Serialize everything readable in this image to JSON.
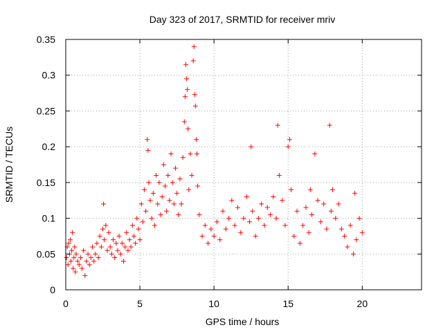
{
  "chart_data": {
    "type": "scatter",
    "title": "Day 323 of 2017, SRMTID for receiver mriv",
    "xlabel": "GPS time / hours",
    "ylabel": "SRMTID / TECUs",
    "xlim": [
      0,
      24
    ],
    "ylim": [
      0,
      0.35
    ],
    "x_ticks": [
      0,
      5,
      10,
      15,
      20
    ],
    "x_tick_labels": [
      "0",
      "5",
      "10",
      "15",
      "20"
    ],
    "y_ticks": [
      0,
      0.05,
      0.1,
      0.15,
      0.2,
      0.25,
      0.3,
      0.35
    ],
    "y_tick_labels": [
      "0",
      "0.05",
      "0.1",
      "0.15",
      "0.2",
      "0.25",
      "0.3",
      "0.35"
    ],
    "grid": true,
    "legend": "none",
    "marker": "plus",
    "marker_color": "#ff0000",
    "series": [
      {
        "points": [
          [
            0.05,
            0.045
          ],
          [
            0.1,
            0.06
          ],
          [
            0.15,
            0.035
          ],
          [
            0.2,
            0.065
          ],
          [
            0.25,
            0.05
          ],
          [
            0.3,
            0.07
          ],
          [
            0.35,
            0.04
          ],
          [
            0.4,
            0.055
          ],
          [
            0.45,
            0.08
          ],
          [
            0.5,
            0.03
          ],
          [
            0.55,
            0.045
          ],
          [
            0.6,
            0.06
          ],
          [
            0.65,
            0.025
          ],
          [
            0.7,
            0.05
          ],
          [
            0.8,
            0.04
          ],
          [
            0.9,
            0.035
          ],
          [
            1.0,
            0.045
          ],
          [
            1.1,
            0.03
          ],
          [
            1.2,
            0.055
          ],
          [
            1.3,
            0.02
          ],
          [
            1.4,
            0.04
          ],
          [
            1.5,
            0.05
          ],
          [
            1.6,
            0.035
          ],
          [
            1.7,
            0.045
          ],
          [
            1.8,
            0.06
          ],
          [
            1.9,
            0.04
          ],
          [
            2.0,
            0.05
          ],
          [
            2.1,
            0.065
          ],
          [
            2.2,
            0.045
          ],
          [
            2.3,
            0.075
          ],
          [
            2.4,
            0.06
          ],
          [
            2.5,
            0.085
          ],
          [
            2.55,
            0.12
          ],
          [
            2.6,
            0.07
          ],
          [
            2.7,
            0.09
          ],
          [
            2.8,
            0.055
          ],
          [
            2.9,
            0.08
          ],
          [
            3.0,
            0.06
          ],
          [
            3.1,
            0.05
          ],
          [
            3.2,
            0.07
          ],
          [
            3.3,
            0.045
          ],
          [
            3.4,
            0.065
          ],
          [
            3.5,
            0.055
          ],
          [
            3.6,
            0.075
          ],
          [
            3.7,
            0.05
          ],
          [
            3.8,
            0.065
          ],
          [
            3.9,
            0.04
          ],
          [
            4.0,
            0.06
          ],
          [
            4.1,
            0.08
          ],
          [
            4.2,
            0.055
          ],
          [
            4.3,
            0.07
          ],
          [
            4.4,
            0.06
          ],
          [
            4.5,
            0.09
          ],
          [
            4.6,
            0.075
          ],
          [
            4.7,
            0.065
          ],
          [
            4.8,
            0.1
          ],
          [
            4.9,
            0.085
          ],
          [
            5.0,
            0.07
          ],
          [
            5.1,
            0.12
          ],
          [
            5.2,
            0.095
          ],
          [
            5.3,
            0.14
          ],
          [
            5.4,
            0.11
          ],
          [
            5.5,
            0.21
          ],
          [
            5.55,
            0.195
          ],
          [
            5.6,
            0.15
          ],
          [
            5.7,
            0.125
          ],
          [
            5.8,
            0.1
          ],
          [
            5.9,
            0.135
          ],
          [
            6.0,
            0.09
          ],
          [
            6.1,
            0.16
          ],
          [
            6.2,
            0.12
          ],
          [
            6.3,
            0.15
          ],
          [
            6.4,
            0.105
          ],
          [
            6.5,
            0.13
          ],
          [
            6.6,
            0.175
          ],
          [
            6.7,
            0.145
          ],
          [
            6.8,
            0.11
          ],
          [
            6.9,
            0.16
          ],
          [
            7.0,
            0.125
          ],
          [
            7.1,
            0.19
          ],
          [
            7.2,
            0.15
          ],
          [
            7.3,
            0.12
          ],
          [
            7.4,
            0.17
          ],
          [
            7.5,
            0.135
          ],
          [
            7.6,
            0.105
          ],
          [
            7.7,
            0.155
          ],
          [
            7.8,
            0.12
          ],
          [
            7.9,
            0.185
          ],
          [
            8.0,
            0.235
          ],
          [
            8.05,
            0.27
          ],
          [
            8.1,
            0.315
          ],
          [
            8.15,
            0.295
          ],
          [
            8.2,
            0.28
          ],
          [
            8.25,
            0.225
          ],
          [
            8.3,
            0.14
          ],
          [
            8.4,
            0.19
          ],
          [
            8.5,
            0.16
          ],
          [
            8.6,
            0.32
          ],
          [
            8.65,
            0.34
          ],
          [
            8.7,
            0.273
          ],
          [
            8.75,
            0.257
          ],
          [
            8.8,
            0.21
          ],
          [
            8.85,
            0.19
          ],
          [
            8.9,
            0.145
          ],
          [
            9.0,
            0.105
          ],
          [
            9.2,
            0.075
          ],
          [
            9.4,
            0.09
          ],
          [
            9.6,
            0.065
          ],
          [
            9.8,
            0.085
          ],
          [
            10.0,
            0.075
          ],
          [
            10.2,
            0.095
          ],
          [
            10.4,
            0.07
          ],
          [
            10.6,
            0.11
          ],
          [
            10.8,
            0.085
          ],
          [
            11.0,
            0.1
          ],
          [
            11.2,
            0.125
          ],
          [
            11.4,
            0.09
          ],
          [
            11.6,
            0.115
          ],
          [
            11.8,
            0.08
          ],
          [
            12.0,
            0.1
          ],
          [
            12.2,
            0.13
          ],
          [
            12.4,
            0.095
          ],
          [
            12.5,
            0.2
          ],
          [
            12.6,
            0.11
          ],
          [
            12.8,
            0.075
          ],
          [
            13.0,
            0.1
          ],
          [
            13.2,
            0.12
          ],
          [
            13.4,
            0.09
          ],
          [
            13.6,
            0.115
          ],
          [
            13.8,
            0.105
          ],
          [
            14.0,
            0.13
          ],
          [
            14.2,
            0.1
          ],
          [
            14.3,
            0.23
          ],
          [
            14.4,
            0.16
          ],
          [
            14.6,
            0.125
          ],
          [
            14.8,
            0.09
          ],
          [
            15.0,
            0.2
          ],
          [
            15.1,
            0.21
          ],
          [
            15.2,
            0.14
          ],
          [
            15.4,
            0.075
          ],
          [
            15.6,
            0.11
          ],
          [
            15.8,
            0.065
          ],
          [
            16.0,
            0.09
          ],
          [
            16.2,
            0.115
          ],
          [
            16.4,
            0.08
          ],
          [
            16.5,
            0.14
          ],
          [
            16.6,
            0.105
          ],
          [
            16.8,
            0.19
          ],
          [
            17.0,
            0.125
          ],
          [
            17.2,
            0.095
          ],
          [
            17.4,
            0.12
          ],
          [
            17.6,
            0.085
          ],
          [
            17.8,
            0.23
          ],
          [
            17.9,
            0.11
          ],
          [
            18.0,
            0.14
          ],
          [
            18.2,
            0.1
          ],
          [
            18.4,
            0.12
          ],
          [
            18.6,
            0.085
          ],
          [
            18.8,
            0.075
          ],
          [
            19.0,
            0.06
          ],
          [
            19.2,
            0.09
          ],
          [
            19.4,
            0.05
          ],
          [
            19.5,
            0.135
          ],
          [
            19.6,
            0.07
          ],
          [
            19.8,
            0.1
          ],
          [
            20.0,
            0.08
          ]
        ]
      }
    ]
  }
}
